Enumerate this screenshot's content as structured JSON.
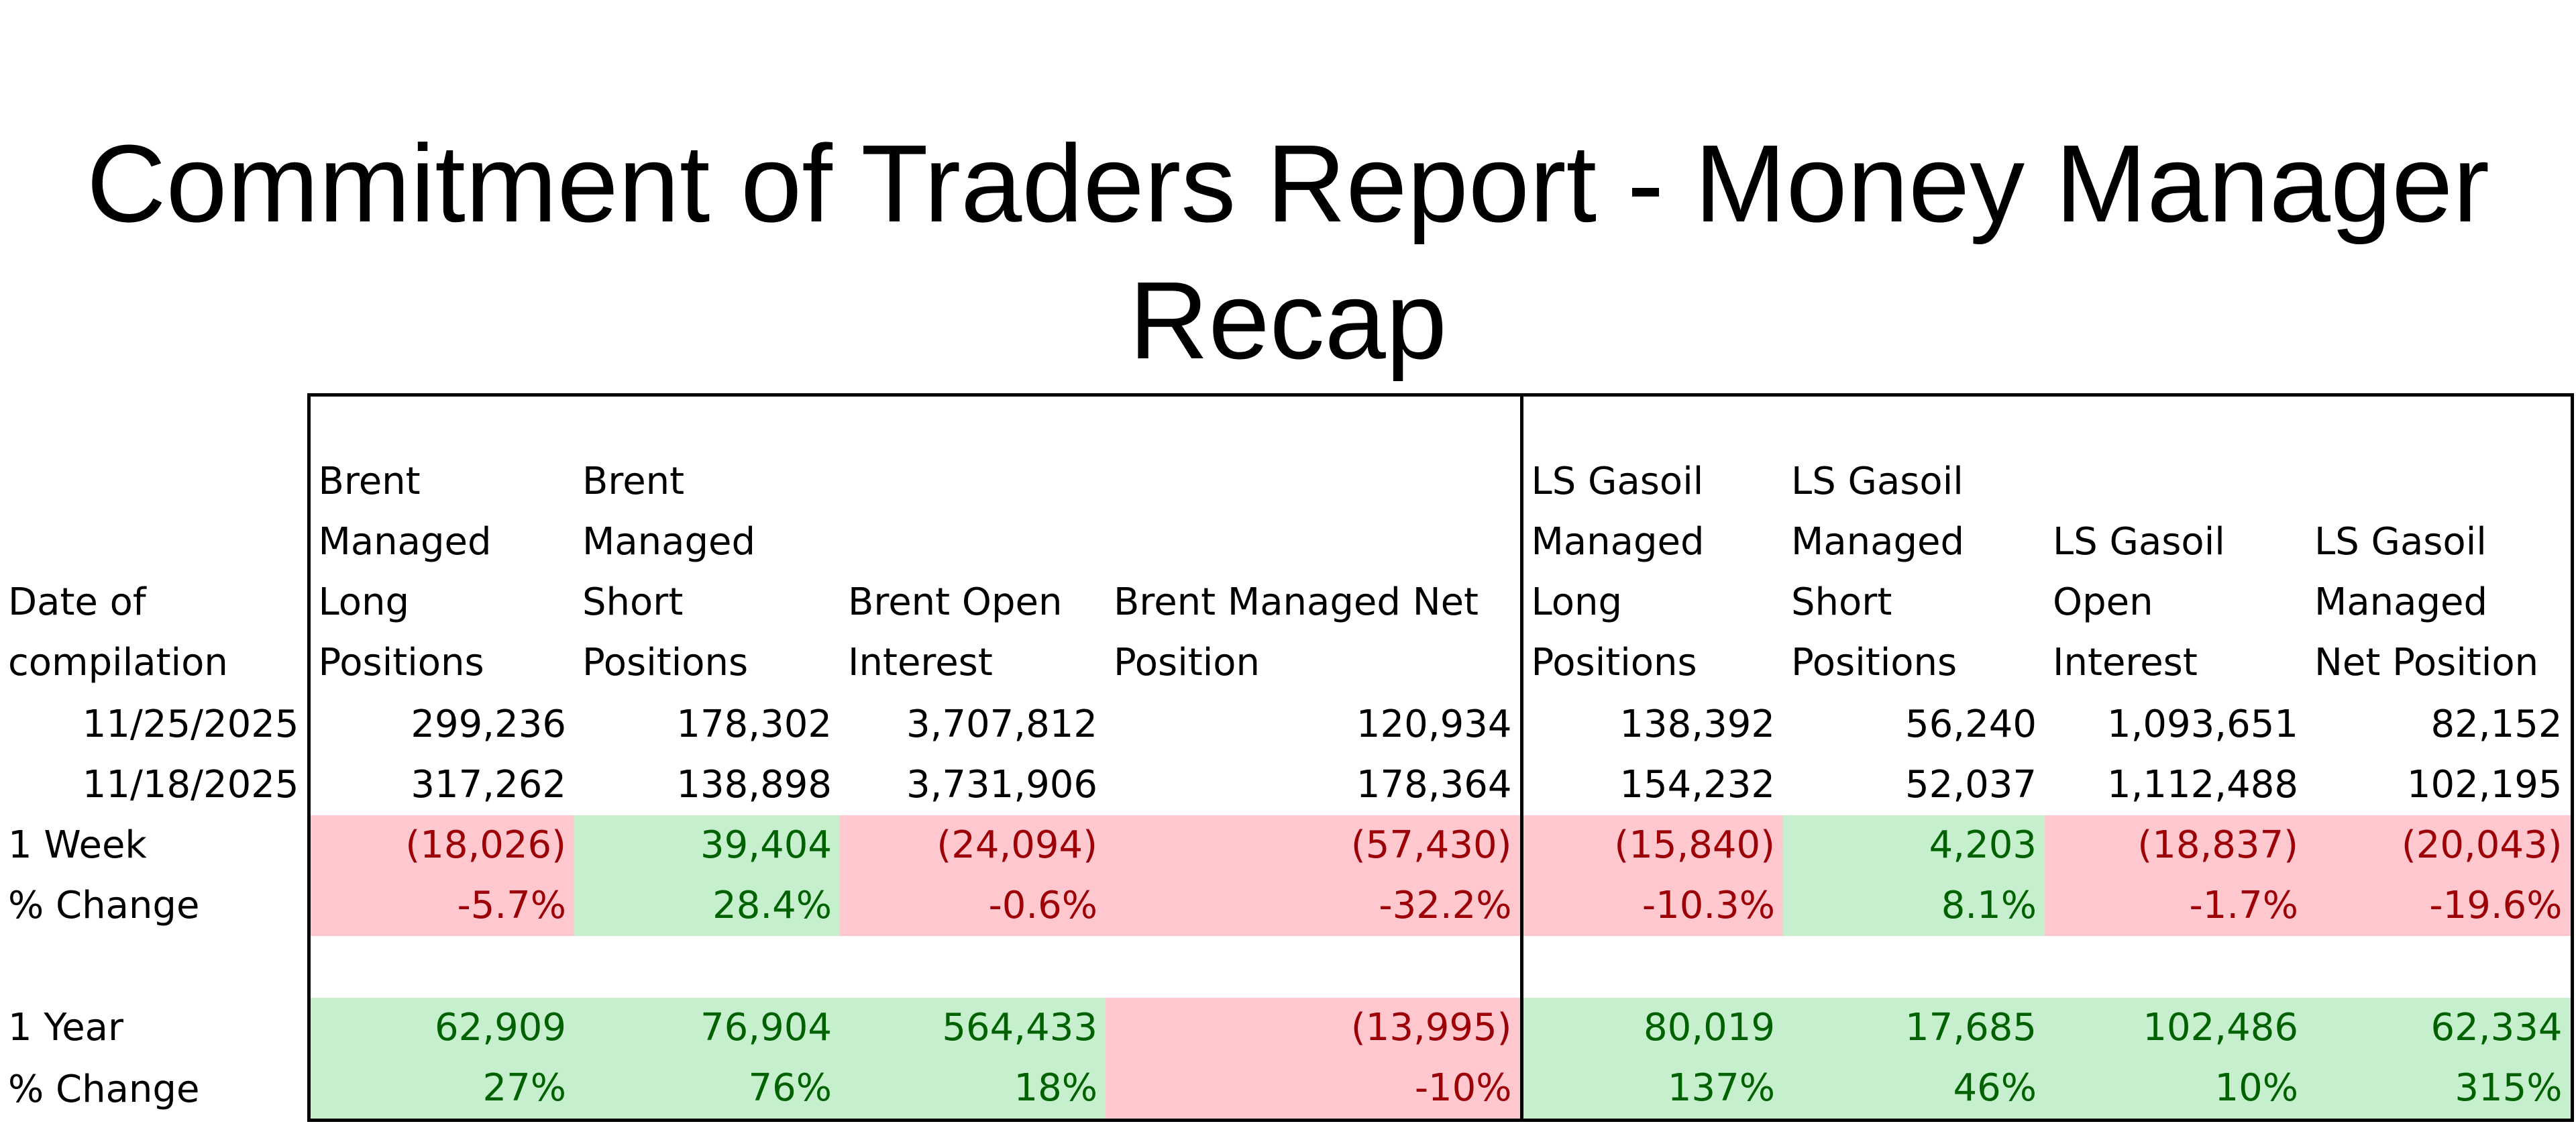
{
  "title_line1": "Commitment of Traders Report - Money Manager",
  "title_line2": "Recap",
  "headers": [
    "Date of compilation",
    "Brent Managed Long Positions",
    "Brent Managed Short Positions",
    "Brent Open Interest",
    "Brent Managed Net Position",
    "LS Gasoil Managed Long Positions",
    "LS Gasoil Managed Short Positions",
    "LS Gasoil Open Interest",
    "LS Gasoil Managed Net Position"
  ],
  "rows": [
    {
      "label": "11/25/2025",
      "cells": [
        "299,236",
        "178,302",
        "3,707,812",
        "120,934",
        "138,392",
        "56,240",
        "1,093,651",
        "82,152"
      ]
    },
    {
      "label": "11/18/2025",
      "cells": [
        "317,262",
        "138,898",
        "3,731,906",
        "178,364",
        "154,232",
        "52,037",
        "1,112,488",
        "102,195"
      ]
    },
    {
      "label": "1 Week",
      "cells": [
        "(18,026)",
        "39,404",
        "(24,094)",
        "(57,430)",
        "(15,840)",
        "4,203",
        "(18,837)",
        "(20,043)"
      ]
    },
    {
      "label": "% Change",
      "cells": [
        "-5.7%",
        "28.4%",
        "-0.6%",
        "-32.2%",
        "-10.3%",
        "8.1%",
        "-1.7%",
        "-19.6%"
      ]
    },
    {
      "label": "1 Year",
      "cells": [
        "62,909",
        "76,904",
        "564,433",
        "(13,995)",
        "80,019",
        "17,685",
        "102,486",
        "62,334"
      ]
    },
    {
      "label": "% Change",
      "cells": [
        "27%",
        "76%",
        "18%",
        "-10%",
        "137%",
        "46%",
        "10%",
        "315%"
      ]
    }
  ],
  "colors": {
    "negative_fill": "#ffc7ce",
    "negative_text": "#9c0006",
    "positive_fill": "#c6efce",
    "positive_text": "#006100"
  }
}
